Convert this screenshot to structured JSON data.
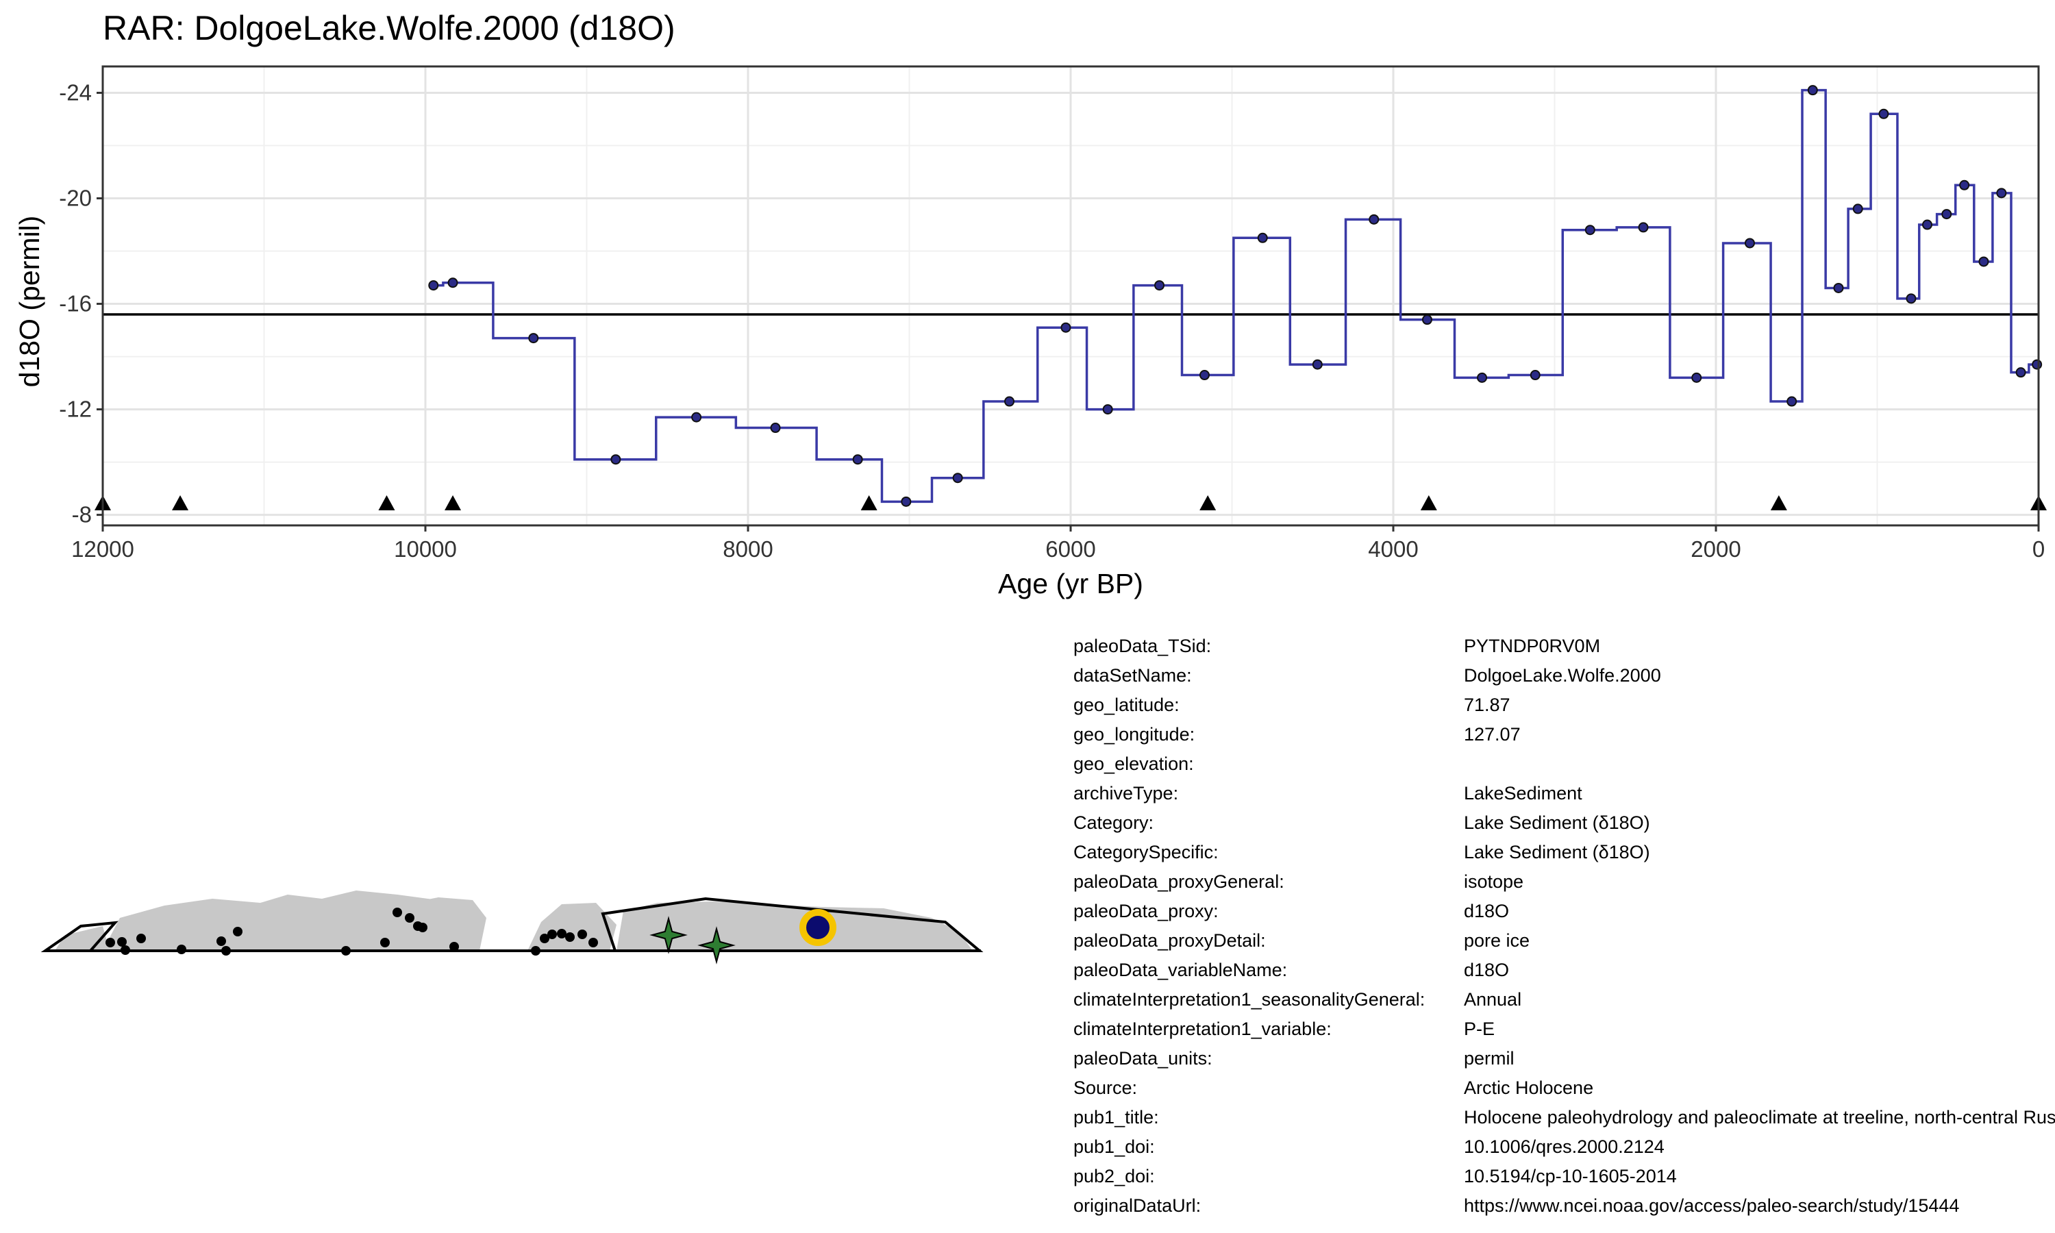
{
  "page": {
    "title": "RAR: DolgoeLake.Wolfe.2000 (d18O)"
  },
  "chart_data": {
    "type": "line",
    "step": true,
    "title": "RAR: DolgoeLake.Wolfe.2000 (d18O)",
    "xlabel": "Age (yr BP)",
    "ylabel": "d18O (permil)",
    "xlim": [
      12000,
      0
    ],
    "ylim": [
      -7.6,
      -25
    ],
    "x_reversed": true,
    "y_reversed": true,
    "x_ticks": [
      12000,
      10000,
      8000,
      6000,
      4000,
      2000,
      0
    ],
    "x_tick_labels": [
      "12000",
      "10000",
      "8000",
      "6000",
      "4000",
      "2000",
      "0"
    ],
    "y_ticks": [
      -24,
      -20,
      -16,
      -12,
      -8
    ],
    "y_tick_labels": [
      "-24",
      "-20",
      "-16",
      "-12",
      "-8"
    ],
    "grid": true,
    "mean_line": -15.6,
    "series": [
      {
        "color": "#1a1a8c",
        "points": [
          {
            "x": 9950,
            "y": -16.7
          },
          {
            "x": 9830,
            "y": -16.8
          },
          {
            "x": 9330,
            "y": -14.7
          },
          {
            "x": 8820,
            "y": -10.1
          },
          {
            "x": 8320,
            "y": -11.7
          },
          {
            "x": 7830,
            "y": -11.3
          },
          {
            "x": 7320,
            "y": -10.1
          },
          {
            "x": 7020,
            "y": -8.5
          },
          {
            "x": 6700,
            "y": -9.4
          },
          {
            "x": 6380,
            "y": -12.3
          },
          {
            "x": 6030,
            "y": -15.1
          },
          {
            "x": 5770,
            "y": -12.0
          },
          {
            "x": 5450,
            "y": -16.7
          },
          {
            "x": 5170,
            "y": -13.3
          },
          {
            "x": 4810,
            "y": -18.5
          },
          {
            "x": 4470,
            "y": -13.7
          },
          {
            "x": 4120,
            "y": -19.2
          },
          {
            "x": 3790,
            "y": -15.4
          },
          {
            "x": 3450,
            "y": -13.2
          },
          {
            "x": 3120,
            "y": -13.3
          },
          {
            "x": 2780,
            "y": -18.8
          },
          {
            "x": 2450,
            "y": -18.9
          },
          {
            "x": 2120,
            "y": -13.2
          },
          {
            "x": 1790,
            "y": -18.3
          },
          {
            "x": 1530,
            "y": -12.3
          },
          {
            "x": 1400,
            "y": -24.1
          },
          {
            "x": 1240,
            "y": -16.6
          },
          {
            "x": 1120,
            "y": -19.6
          },
          {
            "x": 960,
            "y": -23.2
          },
          {
            "x": 790,
            "y": -16.2
          },
          {
            "x": 690,
            "y": -19.0
          },
          {
            "x": 570,
            "y": -19.4
          },
          {
            "x": 460,
            "y": -20.5
          },
          {
            "x": 340,
            "y": -17.6
          },
          {
            "x": 230,
            "y": -20.2
          },
          {
            "x": 110,
            "y": -13.4
          },
          {
            "x": 10,
            "y": -13.7
          }
        ]
      }
    ],
    "chron_markers_x": [
      12000,
      11520,
      10240,
      9830,
      7250,
      5150,
      3780,
      1610,
      0
    ]
  },
  "map": {
    "land_color": "#c8c8c8",
    "site_color": "#0b0b6e",
    "site_ring_color": "#f5c400",
    "star_color": "#2e7d32",
    "dot_color": "#000000"
  },
  "metadata": [
    {
      "key": "paleoData_TSid:",
      "value": "PYTNDP0RV0M"
    },
    {
      "key": "dataSetName:",
      "value": "DolgoeLake.Wolfe.2000"
    },
    {
      "key": "geo_latitude:",
      "value": "71.87"
    },
    {
      "key": "geo_longitude:",
      "value": "127.07"
    },
    {
      "key": "geo_elevation:",
      "value": ""
    },
    {
      "key": "archiveType:",
      "value": "LakeSediment"
    },
    {
      "key": "Category:",
      "value": "Lake Sediment (δ18O)"
    },
    {
      "key": "CategorySpecific:",
      "value": "Lake Sediment (δ18O)"
    },
    {
      "key": "paleoData_proxyGeneral:",
      "value": "isotope"
    },
    {
      "key": "paleoData_proxy:",
      "value": "d18O"
    },
    {
      "key": "paleoData_proxyDetail:",
      "value": "pore ice"
    },
    {
      "key": "paleoData_variableName:",
      "value": "d18O"
    },
    {
      "key": "climateInterpretation1_seasonalityGeneral:",
      "value": "Annual"
    },
    {
      "key": "climateInterpretation1_variable:",
      "value": "P-E"
    },
    {
      "key": "paleoData_units:",
      "value": "permil"
    },
    {
      "key": "Source:",
      "value": "Arctic Holocene"
    },
    {
      "key": "pub1_title:",
      "value": "Holocene paleohydrology and paleoclimate at treeline, north-central Russia"
    },
    {
      "key": "pub1_doi:",
      "value": "10.1006/qres.2000.2124"
    },
    {
      "key": "pub2_doi:",
      "value": "10.5194/cp-10-1605-2014"
    },
    {
      "key": "originalDataUrl:",
      "value": "https://www.ncei.noaa.gov/access/paleo-search/study/15444"
    }
  ]
}
